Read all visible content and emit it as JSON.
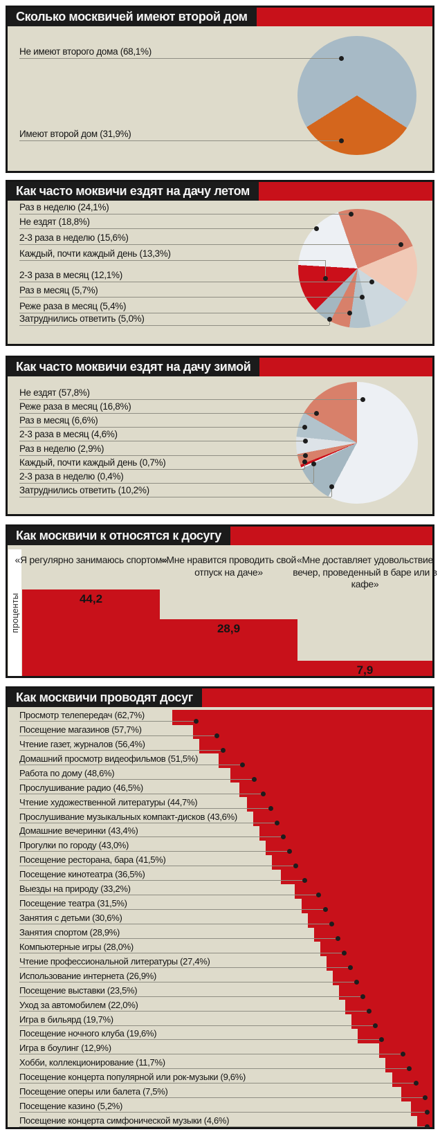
{
  "accent_colors": {
    "red": "#c8111a",
    "black_bar": "#1b1b1b",
    "panel_beige": "#dedbcb"
  },
  "chart_data": [
    {
      "id": "second_home",
      "type": "pie",
      "title": "Сколько москвичей имеют второй дом",
      "slices": [
        {
          "label": "Не имеют второго дома (68,1%)",
          "value": 68.1,
          "color": "#a7bac6"
        },
        {
          "label": "Имеют второй дом (31,9%)",
          "value": 31.9,
          "color": "#d4661d"
        }
      ],
      "legend_position": "left-leader-lines"
    },
    {
      "id": "dacha_summer",
      "type": "pie",
      "title": "Как часто моквичи ездят на дачу летом",
      "slices": [
        {
          "label": "Раз в неделю (24,1%)",
          "value": 24.1,
          "color": "#d8806a"
        },
        {
          "label": "Не ездят (18,8%)",
          "value": 18.8,
          "color": "#edf0f4"
        },
        {
          "label": "2-3 раза в неделю (15,6%)",
          "value": 15.6,
          "color": "#f1c9b6"
        },
        {
          "label": "Каждый, почти каждый день (13,3%)",
          "value": 13.3,
          "color": "#cb0f1a"
        },
        {
          "label": "2-3 раза в месяц (12,1%)",
          "value": 12.1,
          "color": "#cdd8de"
        },
        {
          "label": "Раз в месяц (5,7%)",
          "value": 5.7,
          "color": "#b2c3cc"
        },
        {
          "label": "Реже раза в месяц (5,4%)",
          "value": 5.4,
          "color": "#d8806a"
        },
        {
          "label": "Затруднились ответить (5,0%)",
          "value": 5.0,
          "color": "#a4b7c1"
        }
      ],
      "legend_position": "left-leader-lines"
    },
    {
      "id": "dacha_winter",
      "type": "pie",
      "title": "Как часто моквичи ездят на дачу зимой",
      "slices": [
        {
          "label": "Не ездят (57,8%)",
          "value": 57.8,
          "color": "#edf0f4"
        },
        {
          "label": "Реже раза в месяц (16,8%)",
          "value": 16.8,
          "color": "#d8806a"
        },
        {
          "label": "Раз в месяц (6,6%)",
          "value": 6.6,
          "color": "#b2c3cc"
        },
        {
          "label": "2-3 раза в месяц (4,6%)",
          "value": 4.6,
          "color": "#dde3e8"
        },
        {
          "label": "Раз в неделю (2,9%)",
          "value": 2.9,
          "color": "#d8806a"
        },
        {
          "label": "Каждый, почти каждый день (0,7%)",
          "value": 0.7,
          "color": "#cb0f1a"
        },
        {
          "label": "2-3 раза в неделю (0,4%)",
          "value": 0.4,
          "color": "#eef1f4"
        },
        {
          "label": "Затруднились ответить (10,2%)",
          "value": 10.2,
          "color": "#a4b7c1"
        }
      ],
      "legend_position": "left-leader-lines"
    },
    {
      "id": "leisure_attitude",
      "type": "bar",
      "title": "Как москвичи к относятся к досугу",
      "ylabel": "проценты",
      "categories": [
        "«Я регулярно занимаюсь спортом»",
        "«Мне нравится проводить свой отпуск на даче»",
        "«Мне доставляет удовольствие вечер, проведенный в баре или в кафе»"
      ],
      "values": [
        44.2,
        28.9,
        7.9
      ],
      "value_labels": [
        "44,2",
        "28,9",
        "7,9"
      ],
      "bar_color": "#c8111a",
      "grid": false
    },
    {
      "id": "leisure_activities",
      "type": "bar",
      "title": "Как москвичи проводят досуг",
      "orientation": "horizontal-staircase",
      "bar_color": "#c8111a",
      "categories": [
        "Просмотр телепередач (62,7%)",
        "Посещение магазинов (57,7%)",
        "Чтение газет, журналов (56,4%)",
        "Домашний просмотр видеофильмов (51,5%)",
        "Работа по дому (48,6%)",
        "Прослушивание радио (46,5%)",
        "Чтение художественной литературы (44,7%)",
        "Прослушивание музыкальных компакт-дисков (43,6%)",
        "Домашние вечеринки (43,4%)",
        "Прогулки по городу (43,0%)",
        "Посещение ресторана, бара (41,5%)",
        "Посещение кинотеатра (36,5%)",
        "Выезды на природу (33,2%)",
        "Посещение театра (31,5%)",
        "Занятия с детьми (30,6%)",
        "Занятия спортом (28,9%)",
        "Компьютерные игры (28,0%)",
        "Чтение профессиональной литературы (27,4%)",
        "Использование интернета (26,9%)",
        "Посещение выставки (23,5%)",
        "Уход за автомобилем (22,0%)",
        "Игра в бильярд (19,7%)",
        "Посещение ночного клуба (19,6%)",
        "Игра в боулинг (12,9%)",
        "Хобби, коллекционирование (11,7%)",
        "Посещение концерта популярной или рок-музыки (9,6%)",
        "Посещение оперы или балета (7,5%)",
        "Посещение казино (5,2%)",
        "Посещение концерта симфонической музыки (4,6%)"
      ],
      "values": [
        62.7,
        57.7,
        56.4,
        51.5,
        48.6,
        46.5,
        44.7,
        43.6,
        43.4,
        43.0,
        41.5,
        36.5,
        33.2,
        31.5,
        30.6,
        28.9,
        28.0,
        27.4,
        26.9,
        23.5,
        22.0,
        19.7,
        19.6,
        12.9,
        11.7,
        9.6,
        7.5,
        5.2,
        4.6
      ]
    }
  ]
}
